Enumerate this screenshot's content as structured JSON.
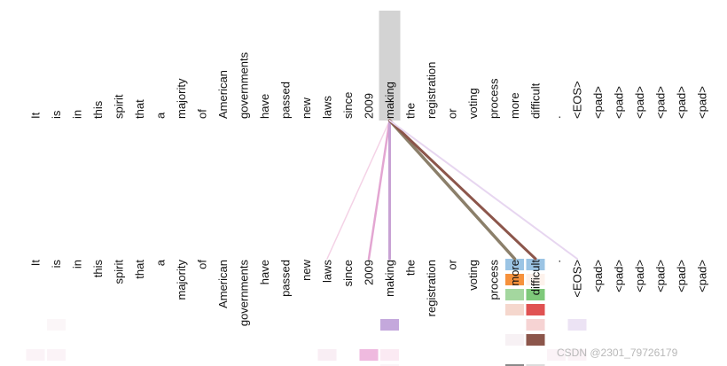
{
  "tokens": [
    "It",
    "is",
    "in",
    "this",
    "spirit",
    "that",
    "a",
    "majority",
    "of",
    "American",
    "governments",
    "have",
    "passed",
    "new",
    "laws",
    "since",
    "2009",
    "making",
    "the",
    "registration",
    "or",
    "voting",
    "process",
    "more",
    "difficult",
    ".",
    "<EOS>",
    "<pad>",
    "<pad>",
    "<pad>",
    "<pad>",
    "<pad>",
    "<pad>"
  ],
  "selected_index": 17,
  "attention_lines": [
    {
      "to": 14,
      "color": "#f4d2e6",
      "weight": 1.5
    },
    {
      "to": 16,
      "color": "#e3a6d2",
      "weight": 2.5
    },
    {
      "to": 17,
      "color": "#c8a2d4",
      "weight": 3.0
    },
    {
      "to": 23,
      "color": "#8b7f6a",
      "weight": 3.5
    },
    {
      "to": 24,
      "color": "#8c564b",
      "weight": 3.0
    },
    {
      "to": 26,
      "color": "#e7d6f0",
      "weight": 2.0
    }
  ],
  "heatmap_cells": [
    {
      "col": 23,
      "row": 0,
      "color": "#9bc4e4"
    },
    {
      "col": 24,
      "row": 0,
      "color": "#9bc4e4"
    },
    {
      "col": 23,
      "row": 1,
      "color": "#f6913c"
    },
    {
      "col": 24,
      "row": 1,
      "color": "#fdf2ec"
    },
    {
      "col": 23,
      "row": 2,
      "color": "#a4d79f"
    },
    {
      "col": 24,
      "row": 2,
      "color": "#7ec97a"
    },
    {
      "col": 23,
      "row": 3,
      "color": "#f5d7cd"
    },
    {
      "col": 24,
      "row": 3,
      "color": "#e05252"
    },
    {
      "col": 17,
      "row": 4,
      "color": "#c4a8dc"
    },
    {
      "col": 24,
      "row": 4,
      "color": "#f6d3d3"
    },
    {
      "col": 26,
      "row": 4,
      "color": "#ece3f4"
    },
    {
      "col": 1,
      "row": 4,
      "color": "#fbf6f8"
    },
    {
      "col": 24,
      "row": 5,
      "color": "#8c564b"
    },
    {
      "col": 23,
      "row": 5,
      "color": "#f7f1f4"
    },
    {
      "col": 0,
      "row": 6,
      "color": "#fbf3f7"
    },
    {
      "col": 1,
      "row": 6,
      "color": "#fbf3f7"
    },
    {
      "col": 14,
      "row": 6,
      "color": "#f9eef4"
    },
    {
      "col": 16,
      "row": 6,
      "color": "#efbadf"
    },
    {
      "col": 17,
      "row": 6,
      "color": "#fbeaf3"
    },
    {
      "col": 25,
      "row": 6,
      "color": "#fbf3f7"
    },
    {
      "col": 26,
      "row": 6,
      "color": "#fbf3f7"
    },
    {
      "col": 17,
      "row": 7,
      "color": "#faf5f8"
    },
    {
      "col": 23,
      "row": 7,
      "color": "#8a8a8a"
    },
    {
      "col": 24,
      "row": 7,
      "color": "#dcdcdc"
    }
  ],
  "highlight_color": "#d3d3d3",
  "watermark": "CSDN @2301_79726179"
}
